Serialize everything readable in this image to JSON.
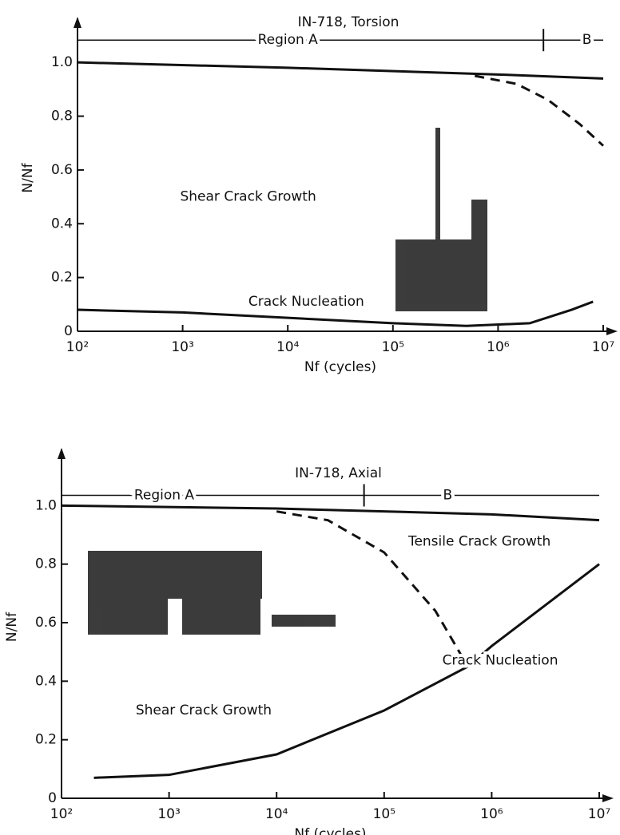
{
  "chart_data": [
    {
      "type": "line",
      "title": "IN-718, Torsion",
      "xlabel": "Nf (cycles)",
      "ylabel": "N/Nf",
      "xscale": "log",
      "xlim": [
        100,
        10000000
      ],
      "ylim": [
        0,
        1.14
      ],
      "xticks": [
        {
          "value": 100,
          "label": "10²"
        },
        {
          "value": 1000,
          "label": "10³"
        },
        {
          "value": 10000,
          "label": "10⁴"
        },
        {
          "value": 100000,
          "label": "10⁵"
        },
        {
          "value": 1000000,
          "label": "10⁶"
        },
        {
          "value": 10000000,
          "label": "10⁷"
        }
      ],
      "yticks": [
        0,
        0.2,
        0.4,
        0.6,
        0.8,
        {
          "value": 1,
          "label": "1.0"
        }
      ],
      "region_y": 1.083,
      "region_boundary": 2700000,
      "series": [
        {
          "color": "#111",
          "dashed": false,
          "x": [
            100,
            10000,
            1000000,
            10000000
          ],
          "values": [
            1.0,
            0.98,
            0.955,
            0.94
          ]
        },
        {
          "color": "#111",
          "dashed": true,
          "x": [
            600000,
            1500000,
            3000000,
            6000000,
            10000000
          ],
          "values": [
            0.95,
            0.92,
            0.86,
            0.77,
            0.69
          ]
        },
        {
          "color": "#111",
          "dashed": false,
          "x": [
            100,
            1000,
            10000,
            100000,
            500000,
            2000000,
            5000000,
            8000000
          ],
          "values": [
            0.08,
            0.07,
            0.05,
            0.03,
            0.02,
            0.03,
            0.08,
            0.11
          ]
        }
      ],
      "annotations": [
        {
          "text": "Region A",
          "x": 10000,
          "y": 1.083
        },
        {
          "text": "B",
          "x": 7000000,
          "y": 1.083
        },
        {
          "text": "Shear Crack Growth",
          "x": 4200,
          "y": 0.5
        },
        {
          "text": "Crack Nucleation",
          "x": 15000,
          "y": 0.11
        }
      ]
    },
    {
      "type": "line",
      "title": "IN-718, Axial",
      "xlabel": "Nf (cycles)",
      "ylabel": "N/Nf",
      "xscale": "log",
      "xlim": [
        100,
        10000000
      ],
      "ylim": [
        0,
        1.17
      ],
      "xticks": [
        {
          "value": 100,
          "label": "10²"
        },
        {
          "value": 1000,
          "label": "10³"
        },
        {
          "value": 10000,
          "label": "10⁴"
        },
        {
          "value": 100000,
          "label": "10⁵"
        },
        {
          "value": 1000000,
          "label": "10⁶"
        },
        {
          "value": 10000000,
          "label": "10⁷"
        }
      ],
      "yticks": [
        0,
        0.2,
        0.4,
        0.6,
        0.8,
        {
          "value": 1,
          "label": "1.0"
        }
      ],
      "region_y": 1.035,
      "region_boundary": 65000,
      "series": [
        {
          "color": "#111",
          "dashed": false,
          "x": [
            100,
            10000,
            1000000,
            10000000
          ],
          "values": [
            1.0,
            0.99,
            0.97,
            0.95
          ]
        },
        {
          "color": "#111",
          "dashed": true,
          "x": [
            10000,
            30000,
            100000,
            300000,
            600000
          ],
          "values": [
            0.98,
            0.95,
            0.84,
            0.64,
            0.45
          ]
        },
        {
          "color": "#111",
          "dashed": false,
          "x": [
            200,
            1000,
            10000,
            100000,
            600000,
            1000000,
            10000000
          ],
          "values": [
            0.07,
            0.08,
            0.15,
            0.3,
            0.45,
            0.52,
            0.8
          ]
        }
      ],
      "annotations": [
        {
          "text": "Region A",
          "x": 900,
          "y": 1.035
        },
        {
          "text": "B",
          "x": 390000,
          "y": 1.035
        },
        {
          "text": "Tensile Crack Growth",
          "x": 770000,
          "y": 0.877
        },
        {
          "text": "Shear Crack Growth",
          "x": 2100,
          "y": 0.3
        },
        {
          "text": "Crack Nucleation",
          "x": 1200000,
          "y": 0.47
        }
      ]
    }
  ]
}
